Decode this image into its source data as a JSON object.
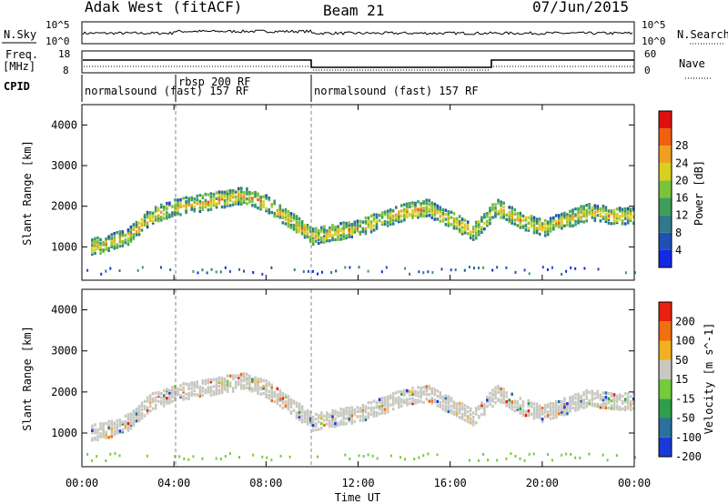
{
  "header": {
    "radar": "Adak West (fitACF)",
    "beam": "Beam 21",
    "date": "07/Jun/2015"
  },
  "panels": {
    "nsky": {
      "label": "N.Sky",
      "ticks": [
        "10^5",
        "10^0"
      ],
      "right_label": "N.Search",
      "right_ticks": [
        "10^5",
        "10^0"
      ]
    },
    "freq": {
      "label_line1": "Freq.",
      "label_line2": "[MHz]",
      "ticks": [
        "18",
        "8"
      ],
      "right_label": "Nave",
      "right_ticks": [
        "60",
        "0"
      ]
    },
    "cpid": {
      "label": "CPID",
      "programs": [
        "normalsound (fast) 157 RF",
        "rbsp 200 RF",
        "normalsound (fast) 157 RF"
      ]
    }
  },
  "chart_data": [
    {
      "type": "heatmap",
      "title": "",
      "xlabel": "",
      "ylabel": "Slant Range [km]",
      "x_ticks": [
        "00:00",
        "04:00",
        "08:00",
        "12:00",
        "16:00",
        "20:00",
        "00:00"
      ],
      "y_ticks": [
        1000,
        2000,
        3000,
        4000
      ],
      "ylim": [
        180,
        4500
      ],
      "colorbar": {
        "label": "Power [dB]",
        "ticks": [
          4,
          8,
          12,
          16,
          20,
          24,
          28
        ],
        "colors": [
          "#1428e6",
          "#2050b4",
          "#2e7a8c",
          "#3f9e5a",
          "#7cc23a",
          "#d8d020",
          "#f0a020",
          "#f06010",
          "#e01010"
        ]
      },
      "echo_band": {
        "hours": [
          0,
          1,
          2,
          3,
          4,
          5,
          6,
          7,
          8,
          9,
          10,
          11,
          12,
          13,
          14,
          15,
          16,
          17,
          18,
          19,
          20,
          21,
          22,
          23,
          24
        ],
        "range_km": [
          1000,
          1100,
          1300,
          1800,
          2000,
          2100,
          2200,
          2300,
          2100,
          1700,
          1300,
          1400,
          1500,
          1700,
          1900,
          2000,
          1700,
          1400,
          2000,
          1700,
          1500,
          1700,
          1900,
          1800,
          1800
        ]
      }
    },
    {
      "type": "heatmap",
      "title": "",
      "xlabel": "Time UT",
      "ylabel": "Slant Range [km]",
      "x_ticks": [
        "00:00",
        "04:00",
        "08:00",
        "12:00",
        "16:00",
        "20:00",
        "00:00"
      ],
      "y_ticks": [
        1000,
        2000,
        3000,
        4000
      ],
      "ylim": [
        180,
        4500
      ],
      "colorbar": {
        "label": "Velocity [m s^-1]",
        "ticks": [
          "200",
          "100",
          "50",
          "15",
          "-15",
          "-50",
          "-100",
          "-200"
        ],
        "colors": [
          "#1a3ad8",
          "#2a70a0",
          "#2f9e4a",
          "#74cc3a",
          "#c8c8c0",
          "#f0b020",
          "#f07010",
          "#e82010"
        ]
      },
      "echo_band": {
        "hours": [
          0,
          1,
          2,
          3,
          4,
          5,
          6,
          7,
          8,
          9,
          10,
          11,
          12,
          13,
          14,
          15,
          16,
          17,
          18,
          19,
          20,
          21,
          22,
          23,
          24
        ],
        "range_km": [
          1000,
          1100,
          1300,
          1800,
          2000,
          2100,
          2200,
          2300,
          2100,
          1700,
          1300,
          1400,
          1500,
          1700,
          1900,
          2000,
          1700,
          1400,
          2000,
          1700,
          1500,
          1700,
          1900,
          1800,
          1800
        ]
      }
    }
  ]
}
